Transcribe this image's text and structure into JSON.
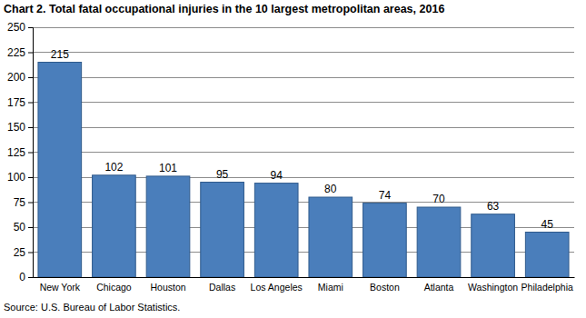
{
  "chart_data": {
    "type": "bar",
    "title": "Chart 2. Total fatal occupational injuries in the 10 largest metropolitan areas, 2016",
    "source": "Source: U.S. Bureau of Labor Statistics.",
    "categories": [
      "New York",
      "Chicago",
      "Houston",
      "Dallas",
      "Los Angeles",
      "Miami",
      "Boston",
      "Atlanta",
      "Washington",
      "Philadelphia"
    ],
    "values": [
      215,
      102,
      101,
      95,
      94,
      80,
      74,
      70,
      63,
      45
    ],
    "color": "#4a7ebb",
    "ylim": [
      0,
      250
    ],
    "yticks": [
      0,
      25,
      50,
      75,
      100,
      125,
      150,
      175,
      200,
      225,
      250
    ],
    "grid": true,
    "data_labels": true
  }
}
